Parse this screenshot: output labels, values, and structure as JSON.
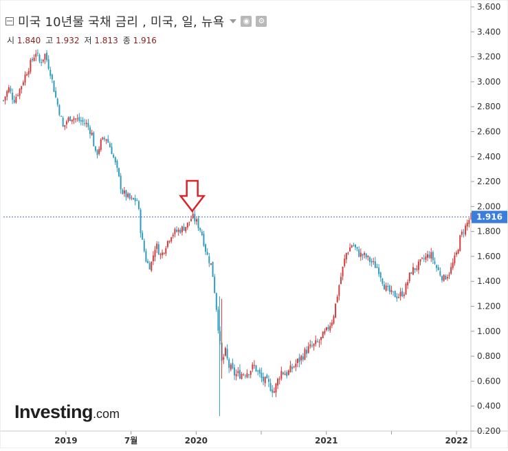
{
  "header": {
    "title": "미국 10년물 국채 금리 , 미국, 일, 뉴욕",
    "ohlc": [
      {
        "label": "시",
        "value": "1.840"
      },
      {
        "label": "고",
        "value": "1.932"
      },
      {
        "label": "저",
        "value": "1.813"
      },
      {
        "label": "종",
        "value": "1.916"
      }
    ]
  },
  "logo": {
    "brand": "Investing",
    "tld": ".com"
  },
  "colors": {
    "up": "#d33b3b",
    "down": "#2f9bbf",
    "current_price_bg": "#3b7ddb",
    "arrow": "#d9232a",
    "price_line": "#4a6fb0"
  },
  "chart_data": {
    "type": "candlestick",
    "title": "미국 10년물 국채 금리",
    "ylim": [
      0.2,
      3.6
    ],
    "y_ticks": [
      "0.200",
      "0.400",
      "0.600",
      "0.800",
      "1.000",
      "1.200",
      "1.400",
      "1.600",
      "1.800",
      "2.000",
      "2.200",
      "2.400",
      "2.600",
      "2.800",
      "3.000",
      "3.200",
      "3.400",
      "3.600"
    ],
    "x_ticks": [
      {
        "label": "2019",
        "t": 2019.0
      },
      {
        "label": "7월",
        "t": 2019.5
      },
      {
        "label": "2020",
        "t": 2020.0
      },
      {
        "label": "2021",
        "t": 2021.0
      },
      {
        "label": "2022",
        "t": 2022.0
      }
    ],
    "x_minor_ticks": [
      2020.5,
      2021.5
    ],
    "x_range": [
      2018.52,
      2022.11
    ],
    "current_value": "1.916",
    "annotation": {
      "type": "down-arrow",
      "t": 2019.97,
      "value": 1.93
    },
    "series": [
      {
        "points": [
          [
            2018.52,
            2.85
          ],
          [
            2018.56,
            2.95
          ],
          [
            2018.6,
            2.85
          ],
          [
            2018.65,
            2.95
          ],
          [
            2018.69,
            3.06
          ],
          [
            2018.73,
            3.15
          ],
          [
            2018.77,
            3.24
          ],
          [
            2018.8,
            3.15
          ],
          [
            2018.84,
            3.22
          ],
          [
            2018.88,
            3.08
          ],
          [
            2018.92,
            2.88
          ],
          [
            2018.96,
            2.72
          ],
          [
            2018.98,
            2.62
          ],
          [
            2019.0,
            2.68
          ],
          [
            2019.04,
            2.72
          ],
          [
            2019.08,
            2.7
          ],
          [
            2019.12,
            2.68
          ],
          [
            2019.16,
            2.66
          ],
          [
            2019.2,
            2.58
          ],
          [
            2019.23,
            2.4
          ],
          [
            2019.27,
            2.52
          ],
          [
            2019.31,
            2.55
          ],
          [
            2019.35,
            2.45
          ],
          [
            2019.39,
            2.3
          ],
          [
            2019.43,
            2.12
          ],
          [
            2019.47,
            2.08
          ],
          [
            2019.5,
            2.05
          ],
          [
            2019.55,
            2.05
          ],
          [
            2019.58,
            1.75
          ],
          [
            2019.62,
            1.55
          ],
          [
            2019.65,
            1.52
          ],
          [
            2019.69,
            1.7
          ],
          [
            2019.73,
            1.6
          ],
          [
            2019.77,
            1.7
          ],
          [
            2019.81,
            1.78
          ],
          [
            2019.85,
            1.8
          ],
          [
            2019.89,
            1.82
          ],
          [
            2019.93,
            1.85
          ],
          [
            2019.97,
            1.92
          ],
          [
            2020.0,
            1.88
          ],
          [
            2020.04,
            1.8
          ],
          [
            2020.08,
            1.62
          ],
          [
            2020.12,
            1.52
          ],
          [
            2020.15,
            1.25
          ],
          [
            2020.18,
            0.92
          ],
          [
            2020.2,
            0.72
          ],
          [
            2020.22,
            0.85
          ],
          [
            2020.25,
            0.72
          ],
          [
            2020.3,
            0.65
          ],
          [
            2020.35,
            0.66
          ],
          [
            2020.4,
            0.68
          ],
          [
            2020.45,
            0.72
          ],
          [
            2020.5,
            0.62
          ],
          [
            2020.55,
            0.58
          ],
          [
            2020.6,
            0.52
          ],
          [
            2020.65,
            0.68
          ],
          [
            2020.7,
            0.66
          ],
          [
            2020.75,
            0.72
          ],
          [
            2020.8,
            0.78
          ],
          [
            2020.85,
            0.85
          ],
          [
            2020.9,
            0.88
          ],
          [
            2020.95,
            0.92
          ],
          [
            2021.0,
            1.0
          ],
          [
            2021.05,
            1.1
          ],
          [
            2021.1,
            1.38
          ],
          [
            2021.15,
            1.62
          ],
          [
            2021.2,
            1.7
          ],
          [
            2021.25,
            1.62
          ],
          [
            2021.3,
            1.6
          ],
          [
            2021.35,
            1.55
          ],
          [
            2021.4,
            1.5
          ],
          [
            2021.45,
            1.35
          ],
          [
            2021.5,
            1.3
          ],
          [
            2021.55,
            1.28
          ],
          [
            2021.6,
            1.32
          ],
          [
            2021.65,
            1.48
          ],
          [
            2021.7,
            1.52
          ],
          [
            2021.75,
            1.58
          ],
          [
            2021.8,
            1.62
          ],
          [
            2021.85,
            1.5
          ],
          [
            2021.9,
            1.42
          ],
          [
            2021.95,
            1.48
          ],
          [
            2022.0,
            1.62
          ],
          [
            2022.03,
            1.76
          ],
          [
            2022.06,
            1.82
          ],
          [
            2022.09,
            1.88
          ],
          [
            2022.11,
            1.92
          ]
        ]
      }
    ]
  }
}
